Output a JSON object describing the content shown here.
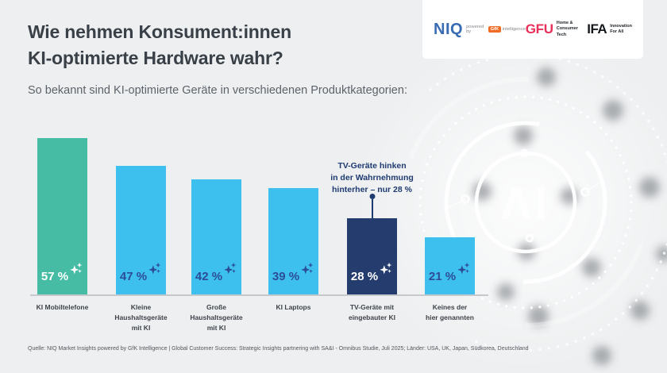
{
  "page": {
    "background": "#EDEFF0"
  },
  "header": {
    "title": "Wie nehmen Konsument:innen\nKI-optimierte Hardware wahr?",
    "subtitle": "So bekannt sind KI-optimierte Geräte in verschiedenen Produktkategorien:"
  },
  "logo_card": {
    "niq": {
      "wordmark": "NIQ",
      "powered_by": "powered by",
      "gfk_badge": "GfK",
      "intelligence": "intelligence",
      "blue": "#3A6CB4",
      "orange": "#F26C25"
    },
    "gfu": {
      "wordmark": "GFU",
      "tagline": "Home &\nConsumer Tech",
      "red": "#E8305A"
    },
    "ifa": {
      "wordmark": "IFA",
      "tagline": "Innovation\nFor All",
      "black": "#14181C"
    }
  },
  "chart_data": {
    "type": "bar",
    "title": "So bekannt sind KI-optimierte Geräte in verschiedenen Produktkategorien:",
    "categories": [
      "KI Mobiltelefone",
      "Kleine Haushaltsgeräte mit KI",
      "Große Haushaltsgeräte mit KI",
      "KI Laptops",
      "TV-Geräte mit eingebauter KI",
      "Keines der hier genannten"
    ],
    "categories_display": [
      "KI Mobiltelefone",
      "Kleine\nHaushaltsgeräte\nmit KI",
      "Große\nHaushaltsgeräte\nmit KI",
      "KI Laptops",
      "TV-Geräte mit\neingebauter KI",
      "Keines der\nhier genannten"
    ],
    "values": [
      57,
      47,
      42,
      39,
      28,
      21
    ],
    "value_labels": [
      "57 %",
      "47 %",
      "42 %",
      "39 %",
      "28 %",
      "21 %"
    ],
    "unit": "%",
    "ylim": [
      0,
      60
    ],
    "xlabel": "",
    "ylabel": "",
    "grid": false,
    "legend": "none",
    "bar_colors": [
      "#46BCA4",
      "#3EC0EF",
      "#3EC0EF",
      "#3EC0EF",
      "#253C6F",
      "#3EC0EF"
    ],
    "value_text_colors": [
      "#FFFFFF",
      "#2C4C96",
      "#2C4C96",
      "#2C4C96",
      "#FFFFFF",
      "#2C4C96"
    ],
    "highlight_index": 4,
    "annotation": {
      "text": "TV-Geräte hinken\nin der Wahrnehmung\nhinterher – nur 28 %",
      "target_category": "TV-Geräte mit eingebauter KI",
      "color": "#1F3B72"
    }
  },
  "decoration": {
    "ai_label": "ΛI"
  },
  "footer": {
    "source": "Quelle: NIQ Market Insights powered by GfK Intelligence | Global Customer Success: Strategic Insights partnering with SA&I - Omnibus Studie, Juli 2025; Länder: USA, UK, Japan, Südkorea, Deutschland"
  }
}
